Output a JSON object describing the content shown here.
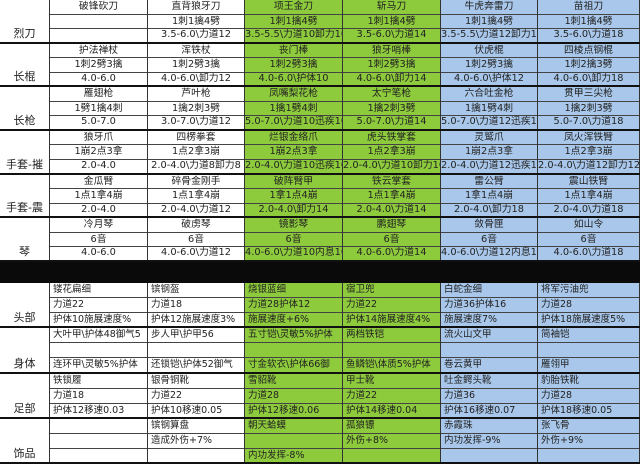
{
  "colors": {
    "green": "#8dca3c",
    "blue": "#a8c7ea",
    "white": "#ffffff"
  },
  "column_colors": [
    "white",
    "white",
    "green",
    "green",
    "blue",
    "blue"
  ],
  "weapons": [
    {
      "label": "烈刀",
      "items": [
        [
          "破锋砍刀",
          "",
          ""
        ],
        [
          "直背狼牙刀",
          "1刺1擒4劈",
          "3.5-6.0\\力道12"
        ],
        [
          "项王金刀",
          "1刺1擒4劈",
          "3.5-5.5\\力道10卸力10"
        ],
        [
          "斩马刀",
          "1刺1擒4劈",
          "3.5-6.0\\力道14"
        ],
        [
          "牛虎奔雷刀",
          "1刺1擒4劈",
          "3.5-5.5\\力道12卸力12"
        ],
        [
          "苗祖刀",
          "1刺1擒4劈",
          "3.5-6.0\\力道18"
        ]
      ]
    },
    {
      "label": "长棍",
      "items": [
        [
          "护法禅杖",
          "1刺2劈3擒",
          "4.0-6.0"
        ],
        [
          "浑铁杖",
          "1刺2劈3擒",
          "4.0-6.0\\卸力12"
        ],
        [
          "丧门棒",
          "1刺2劈3擒",
          "4.0-6.0\\护体10"
        ],
        [
          "狼牙哨棒",
          "1刺2劈3擒",
          "4.0-6.0\\卸力14"
        ],
        [
          "伏虎棍",
          "1刺2劈3擒",
          "4.0-6.0\\护体12"
        ],
        [
          "四棱点钢棍",
          "1刺2擒3劈",
          "4.0-6.0\\卸力18"
        ]
      ]
    },
    {
      "label": "长枪",
      "items": [
        [
          "雁翅枪",
          "1劈1擒4刺",
          "5.0-7.0"
        ],
        [
          "芦叶枪",
          "1擒2刺3劈",
          "3.0-7.0\\力道12"
        ],
        [
          "凤嘴梨花枪",
          "1擒1劈4刺",
          "5.0-7.0\\力道10迅疾10"
        ],
        [
          "太宁笔枪",
          "1擒2刺3劈",
          "5.0-7.0\\力道14"
        ],
        [
          "六合吐金枪",
          "1擒1劈4刺",
          "5.0-7.0\\力道12迅疾12"
        ],
        [
          "贯甲三尖枪",
          "1擒2刺3劈",
          "5.0-7.0\\力道18"
        ]
      ]
    },
    {
      "label": "手套-摧",
      "items": [
        [
          "狼牙爪",
          "1崩2点3拿",
          "2.0-4.0"
        ],
        [
          "四楞拳套",
          "1点2拿3崩",
          "2.0-4.0\\力道8卸力8"
        ],
        [
          "烂银金络爪",
          "1崩2点3拿",
          "2.0-4.0\\力道10迅疾10"
        ],
        [
          "虎头铁掌套",
          "1点2拿3崩",
          "2.0-4.0\\力道10卸力10"
        ],
        [
          "灵鹫爪",
          "1崩2点3拿",
          "2.0-4.0\\力道12迅疾12"
        ],
        [
          "凤火浑铁臂",
          "1点2拿3崩",
          "2.0-4.0\\力道12卸力12"
        ]
      ]
    },
    {
      "label": "手套-震",
      "items": [
        [
          "金瓜臂",
          "1点1拿4崩",
          "2.0-4.0"
        ],
        [
          "碎骨金刚手",
          "1点1拿4崩",
          "2.0-4.0\\力道12"
        ],
        [
          "破阵臂甲",
          "1拿1点4崩",
          "2.0-4.0\\卸力14"
        ],
        [
          "铁云掌套",
          "1点1拿4崩",
          "2.0-4.0\\力道14"
        ],
        [
          "雷公臂",
          "1拿1点4崩",
          "2.0-4.0\\卸力18"
        ],
        [
          "震山铁臂",
          "1点1拿4崩",
          "2.0-4.0\\力道18"
        ]
      ]
    },
    {
      "label": "琴",
      "items": [
        [
          "冷月琴",
          "6音",
          "4.0-6.0"
        ],
        [
          "破虏琴",
          "6音",
          "4.0-6.0\\力道12"
        ],
        [
          "镜影琴",
          "6音",
          "4.0-6.0\\力道10内息10"
        ],
        [
          "鹏翅琴",
          "6音",
          "4.0-6.0\\力道14"
        ],
        [
          "敛骨匣",
          "6音",
          "4.0-6.0\\力道12内息12"
        ],
        [
          "如山令",
          "6音",
          "4.0-6.0\\力道18"
        ]
      ]
    }
  ],
  "armor": [
    {
      "label": "头部",
      "items": [
        [
          "镂花扁细",
          "力道22",
          "护体10施展速度%"
        ],
        [
          "镔钢盔",
          "力道18",
          "护体12施展速度3%"
        ],
        [
          "烧银蓝细",
          "力道28护体12",
          "施展速度+6%"
        ],
        [
          "宿卫兜",
          "力道22",
          "护体14施展速度4%"
        ],
        [
          "白蛇金细",
          "力道36护体16",
          "施展速度7%"
        ],
        [
          "将军污油兜",
          "力道28",
          "护体18施展速度5%"
        ]
      ]
    },
    {
      "label": "身体",
      "items": [
        [
          "大叶甲\\护体48御气5",
          "",
          "连环甲\\灵敏5%护体"
        ],
        [
          "步人甲\\护甲56",
          "",
          "还锁铠\\护体52御气"
        ],
        [
          "五寸铠\\灵敏5%护体",
          "",
          "寸金软衣\\护体66御"
        ],
        [
          "两档铁铠",
          "",
          "鱼鳞铠\\体质5%护体"
        ],
        [
          "流火山文甲",
          "",
          "卷云黄甲"
        ],
        [
          "简袖铠",
          "",
          "雁翎甲"
        ]
      ]
    },
    {
      "label": "足部",
      "items": [
        [
          "铁锁履",
          "力道18",
          "护体12移速0.03"
        ],
        [
          "银骨铜靴",
          "力道22",
          "护体10移速0.05"
        ],
        [
          "雪貂靴",
          "力道28",
          "护体12移速0.06"
        ],
        [
          "甲士靴",
          "力道22",
          "护体14移速0.04"
        ],
        [
          "吐金鳄头靴",
          "力道36",
          "护体16移速0.07"
        ],
        [
          "豹胎铁靴",
          "力道28",
          "护体18移速0.05"
        ]
      ]
    },
    {
      "label": "饰品",
      "items": [
        [
          "",
          "",
          ""
        ],
        [
          "镔钢算盘",
          "造成外伤+7%",
          ""
        ],
        [
          "朝天蛤蟆",
          "",
          "内功发挥-8%"
        ],
        [
          "孤狼镖",
          "外伤+8%",
          ""
        ],
        [
          "赤霞珠",
          "内功发挥-9%",
          ""
        ],
        [
          "张飞骨",
          "外伤+9%",
          ""
        ]
      ]
    }
  ]
}
